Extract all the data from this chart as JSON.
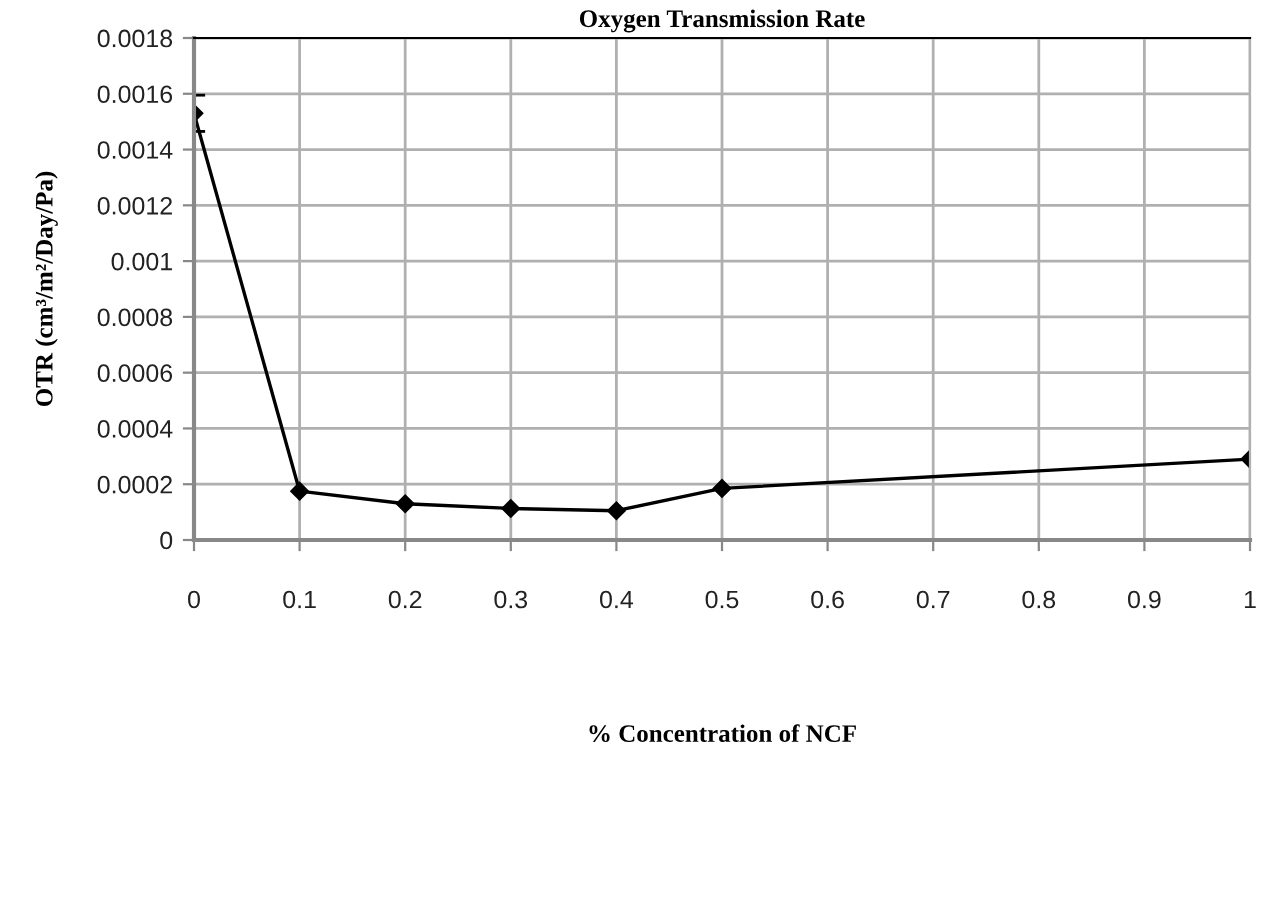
{
  "chart_data": {
    "type": "line",
    "title": "Oxygen Transmission Rate",
    "xlabel": "% Concentration of NCF",
    "ylabel": "OTR (cm³/m²/Day/Pa)",
    "x": [
      0,
      0.1,
      0.2,
      0.3,
      0.4,
      0.5,
      1
    ],
    "series": [
      {
        "color": "#000000",
        "values": [
          0.00153,
          0.000175,
          0.00013,
          0.000113,
          0.000105,
          0.000185,
          0.00029
        ],
        "errors": [
          6.5e-05,
          null,
          null,
          null,
          null,
          null,
          null
        ]
      }
    ],
    "xlim": [
      0,
      1
    ],
    "xticks": [
      0,
      0.1,
      0.2,
      0.3,
      0.4,
      0.5,
      0.6,
      0.7,
      0.8,
      0.9,
      1
    ],
    "ylim": [
      0,
      0.0018
    ],
    "yticks": [
      0,
      0.0002,
      0.0004,
      0.0006,
      0.0008,
      0.001,
      0.0012,
      0.0014,
      0.0016,
      0.0018
    ],
    "grid": true,
    "marker": "diamond",
    "line_style": "solid"
  }
}
